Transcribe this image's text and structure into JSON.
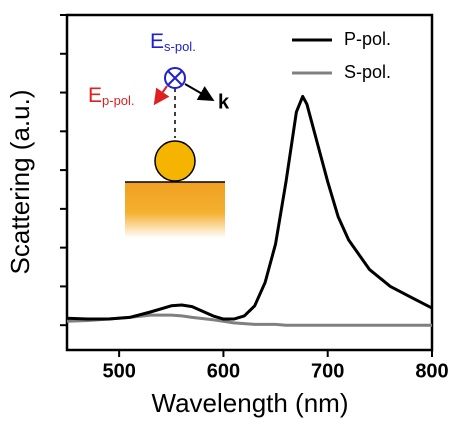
{
  "chart_data": {
    "type": "line",
    "x_label": "Wavelength (nm)",
    "y_label": "Scattering (a.u.)",
    "x": [
      450,
      470,
      490,
      510,
      530,
      550,
      560,
      570,
      590,
      600,
      610,
      620,
      630,
      640,
      650,
      660,
      670,
      676,
      680,
      690,
      700,
      710,
      720,
      740,
      760,
      780,
      800
    ],
    "series": [
      {
        "name": "P-pol.",
        "color": "#000000",
        "values": [
          0.09,
          0.08,
          0.08,
          0.1,
          0.17,
          0.25,
          0.26,
          0.24,
          0.12,
          0.08,
          0.08,
          0.12,
          0.25,
          0.55,
          1.05,
          1.85,
          2.75,
          2.95,
          2.85,
          2.35,
          1.85,
          1.4,
          1.1,
          0.72,
          0.5,
          0.36,
          0.22
        ]
      },
      {
        "name": "S-pol.",
        "color": "#808080",
        "values": [
          0.05,
          0.06,
          0.08,
          0.1,
          0.13,
          0.13,
          0.12,
          0.1,
          0.07,
          0.05,
          0.03,
          0.02,
          0.01,
          0.01,
          0.01,
          0,
          0,
          0,
          0,
          0,
          0,
          0,
          0,
          0,
          0,
          0,
          0
        ]
      }
    ],
    "xlim": [
      450,
      800
    ],
    "xticks": [
      500,
      600,
      700,
      800
    ],
    "ylim": [
      -0.32,
      4
    ],
    "yticks": [
      0,
      0.5,
      1,
      1.5,
      2,
      2.5,
      3,
      3.5,
      4
    ],
    "legend": "upper right",
    "annotations": [
      {
        "text": "E",
        "subscript": "s-pol."
      },
      {
        "text": "E",
        "subscript": "p-pol."
      },
      {
        "text": "k"
      }
    ]
  }
}
